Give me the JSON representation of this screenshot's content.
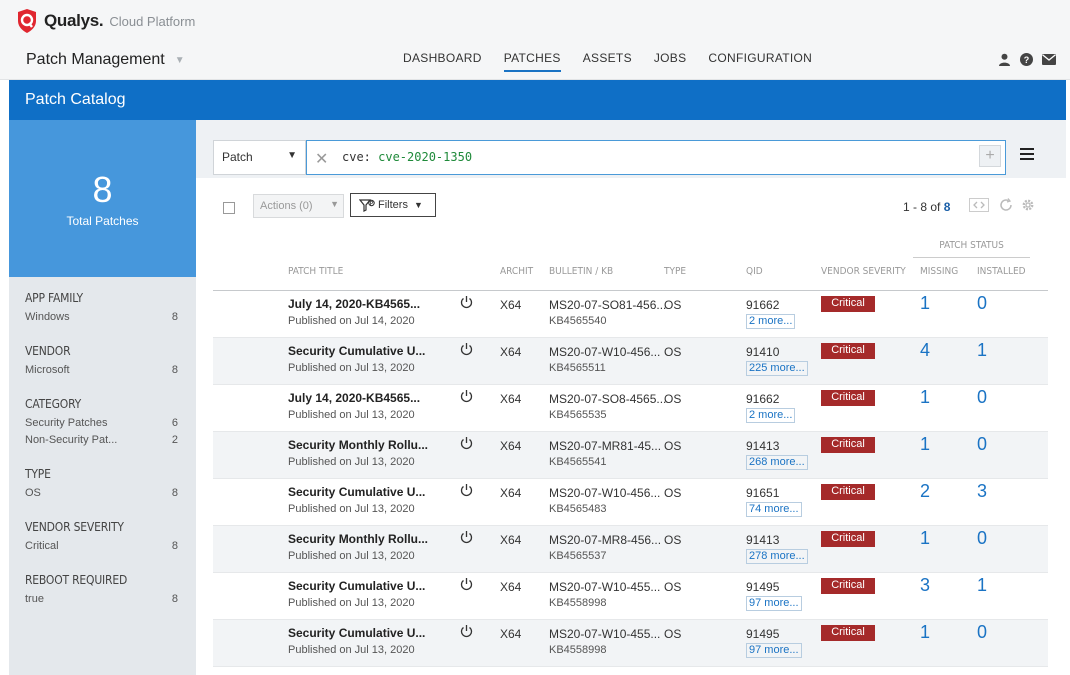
{
  "app": {
    "brand": "Qualys.",
    "platform": "Cloud Platform",
    "module": "Patch Management",
    "module_caret": "▼"
  },
  "nav": [
    {
      "label": "DASHBOARD",
      "active": false
    },
    {
      "label": "PATCHES",
      "active": true
    },
    {
      "label": "ASSETS",
      "active": false
    },
    {
      "label": "JOBS",
      "active": false
    },
    {
      "label": "CONFIGURATION",
      "active": false
    }
  ],
  "header_icons": [
    "user-icon",
    "help-icon",
    "mail-icon"
  ],
  "page_title": "Patch Catalog",
  "summary": {
    "count": "8",
    "label": "Total Patches"
  },
  "sidebar": {
    "facets": [
      {
        "title": "APP FAMILY",
        "items": [
          {
            "label": "Windows",
            "count": "8"
          }
        ]
      },
      {
        "title": "VENDOR",
        "items": [
          {
            "label": "Microsoft",
            "count": "8"
          }
        ]
      },
      {
        "title": "CATEGORY",
        "items": [
          {
            "label": "Security Patches",
            "count": "6"
          },
          {
            "label": "Non-Security Pat...",
            "count": "2"
          }
        ]
      },
      {
        "title": "TYPE",
        "items": [
          {
            "label": "OS",
            "count": "8"
          }
        ]
      },
      {
        "title": "VENDOR SEVERITY",
        "items": [
          {
            "label": "Critical",
            "count": "8"
          }
        ]
      },
      {
        "title": "REBOOT REQUIRED",
        "items": [
          {
            "label": "true",
            "count": "8"
          }
        ]
      }
    ]
  },
  "search": {
    "scope": "Patch",
    "scope_caret": "▼",
    "query_prefix": "cve: ",
    "query_value": "cve-2020-1350",
    "clear_glyph": "✕",
    "add_glyph": "+"
  },
  "toolbar": {
    "actions_label": "Actions (0)",
    "actions_caret": "▼",
    "filters_label": "Filters",
    "filters_caret": "▼",
    "pager_range": "1 - 8 of ",
    "pager_total": "8"
  },
  "table": {
    "group_header": "PATCH STATUS",
    "columns": {
      "title": "PATCH TITLE",
      "arch": "ARCHIT",
      "bulletin": "BULLETIN / KB",
      "type": "TYPE",
      "qid": "QID",
      "severity": "VENDOR SEVERITY",
      "missing": "MISSING",
      "installed": "INSTALLED"
    },
    "rows": [
      {
        "title": "July 14, 2020-KB4565...",
        "published": "Published on Jul 14, 2020",
        "arch": "X64",
        "bulletin": "MS20-07-SO81-456...",
        "kb": "KB4565540",
        "type": "OS",
        "qid": "91662",
        "more": "2 more...",
        "severity": "Critical",
        "missing": "1",
        "installed": "0"
      },
      {
        "title": "Security Cumulative U...",
        "published": "Published on Jul 13, 2020",
        "arch": "X64",
        "bulletin": "MS20-07-W10-456...",
        "kb": "KB4565511",
        "type": "OS",
        "qid": "91410",
        "more": "225 more...",
        "severity": "Critical",
        "missing": "4",
        "installed": "1"
      },
      {
        "title": "July 14, 2020-KB4565...",
        "published": "Published on Jul 13, 2020",
        "arch": "X64",
        "bulletin": "MS20-07-SO8-4565...",
        "kb": "KB4565535",
        "type": "OS",
        "qid": "91662",
        "more": "2 more...",
        "severity": "Critical",
        "missing": "1",
        "installed": "0"
      },
      {
        "title": "Security Monthly Rollu...",
        "published": "Published on Jul 13, 2020",
        "arch": "X64",
        "bulletin": "MS20-07-MR81-45...",
        "kb": "KB4565541",
        "type": "OS",
        "qid": "91413",
        "more": "268 more...",
        "severity": "Critical",
        "missing": "1",
        "installed": "0"
      },
      {
        "title": "Security Cumulative U...",
        "published": "Published on Jul 13, 2020",
        "arch": "X64",
        "bulletin": "MS20-07-W10-456...",
        "kb": "KB4565483",
        "type": "OS",
        "qid": "91651",
        "more": "74 more...",
        "severity": "Critical",
        "missing": "2",
        "installed": "3"
      },
      {
        "title": "Security Monthly Rollu...",
        "published": "Published on Jul 13, 2020",
        "arch": "X64",
        "bulletin": "MS20-07-MR8-456...",
        "kb": "KB4565537",
        "type": "OS",
        "qid": "91413",
        "more": "278 more...",
        "severity": "Critical",
        "missing": "1",
        "installed": "0"
      },
      {
        "title": "Security Cumulative U...",
        "published": "Published on Jul 13, 2020",
        "arch": "X64",
        "bulletin": "MS20-07-W10-455...",
        "kb": "KB4558998",
        "type": "OS",
        "qid": "91495",
        "more": "97 more...",
        "severity": "Critical",
        "missing": "3",
        "installed": "1"
      },
      {
        "title": "Security Cumulative U...",
        "published": "Published on Jul 13, 2020",
        "arch": "X64",
        "bulletin": "MS20-07-W10-455...",
        "kb": "KB4558998",
        "type": "OS",
        "qid": "91495",
        "more": "97 more...",
        "severity": "Critical",
        "missing": "1",
        "installed": "0"
      }
    ]
  },
  "colors": {
    "brand_red": "#e0262f",
    "title_blue": "#0f6fc6",
    "stat_blue": "#4697dc",
    "link_blue": "#1a73c4",
    "critical": "#a52a2a"
  }
}
